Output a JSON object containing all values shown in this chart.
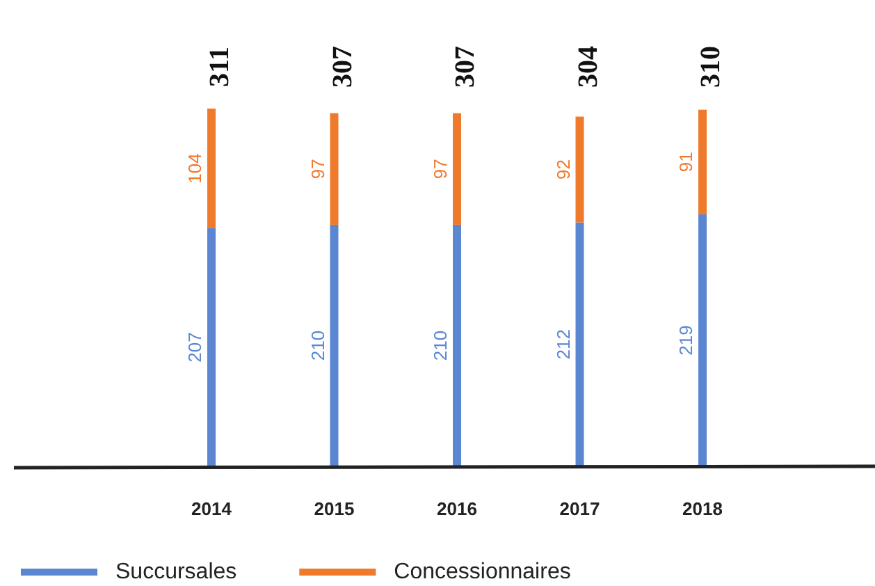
{
  "chart_data": {
    "type": "bar",
    "stacked": true,
    "categories": [
      "2014",
      "2015",
      "2016",
      "2017",
      "2018"
    ],
    "series": [
      {
        "name": "Succursales",
        "color": "#5b87d2",
        "values": [
          207,
          210,
          210,
          212,
          219
        ]
      },
      {
        "name": "Concessionnaires",
        "color": "#f07a2c",
        "values": [
          104,
          97,
          97,
          92,
          91
        ]
      }
    ],
    "data_labels": true,
    "totals": [
      "311",
      "307",
      "307",
      "304",
      "310"
    ],
    "legend": "bottom left"
  }
}
